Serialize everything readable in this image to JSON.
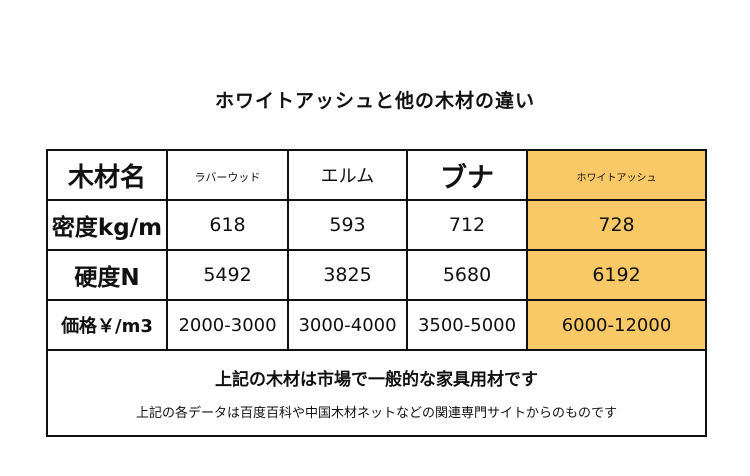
{
  "title": "ホワイトアッシュと他の木材の違い",
  "table": {
    "corner": "木材名",
    "columns": [
      "ラバーウッド",
      "エルム",
      "ブナ",
      "ホワイトアッシュ"
    ],
    "rows": [
      {
        "label": "密度kg/m",
        "values": [
          "618",
          "593",
          "712",
          "728"
        ]
      },
      {
        "label": "硬度N",
        "values": [
          "5492",
          "3825",
          "5680",
          "6192"
        ]
      },
      {
        "label": "価格￥/m3",
        "values": [
          "2000-3000",
          "3000-4000",
          "3500-5000",
          "6000-12000"
        ]
      }
    ]
  },
  "footer": {
    "line1": "上記の木材は市場で一般的な家具用材です",
    "line2": "上記の各データは百度百科や中国木材ネットなどの関連専門サイトからのものです"
  },
  "colors": {
    "highlight": "#f9c867",
    "border": "#111111"
  }
}
